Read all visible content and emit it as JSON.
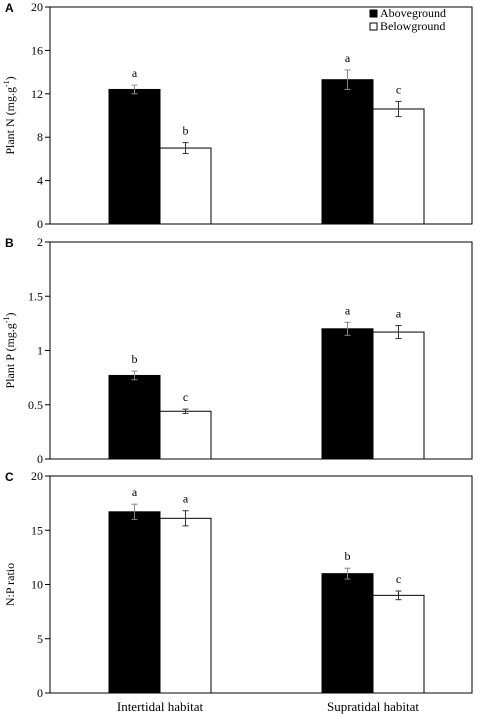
{
  "chart_data": [
    {
      "panel": "A",
      "type": "bar",
      "ylabel": "Plant N (mg.g",
      "ylabel_sup": "-1",
      "ylabel_end": ")",
      "ylim": [
        0,
        20
      ],
      "yticks": [
        0,
        4,
        8,
        12,
        16,
        20
      ],
      "ytick_labels": [
        "0",
        "4",
        "8",
        "12",
        "16",
        "20"
      ],
      "categories": [
        "Intertidal habitat",
        "Supratidal habitat"
      ],
      "legend": "top-right",
      "series": [
        {
          "name": "Aboveground",
          "fill": "#000000",
          "values": [
            12.4,
            13.3
          ],
          "errors": [
            0.4,
            0.9
          ],
          "letters": [
            "a",
            "a"
          ]
        },
        {
          "name": "Belowground",
          "fill": "#ffffff",
          "values": [
            7.0,
            10.6
          ],
          "errors": [
            0.5,
            0.7
          ],
          "letters": [
            "b",
            "c"
          ]
        }
      ]
    },
    {
      "panel": "B",
      "type": "bar",
      "ylabel": "Plant P (mg.g",
      "ylabel_sup": "-1",
      "ylabel_end": ")",
      "ylim": [
        0,
        2
      ],
      "yticks": [
        0,
        0.5,
        1,
        1.5,
        2
      ],
      "ytick_labels": [
        "0",
        "0.5",
        "1",
        "1.5",
        "2"
      ],
      "categories": [
        "Intertidal habitat",
        "Supratidal habitat"
      ],
      "series": [
        {
          "name": "Aboveground",
          "fill": "#000000",
          "values": [
            0.77,
            1.2
          ],
          "errors": [
            0.04,
            0.06
          ],
          "letters": [
            "b",
            "a"
          ]
        },
        {
          "name": "Belowground",
          "fill": "#ffffff",
          "values": [
            0.44,
            1.17
          ],
          "errors": [
            0.02,
            0.06
          ],
          "letters": [
            "c",
            "a"
          ]
        }
      ]
    },
    {
      "panel": "C",
      "type": "bar",
      "ylabel": "N:P ratio",
      "ylabel_sup": "",
      "ylabel_end": "",
      "ylim": [
        0,
        20
      ],
      "yticks": [
        0,
        5,
        10,
        15,
        20
      ],
      "ytick_labels": [
        "0",
        "5",
        "10",
        "15",
        "20"
      ],
      "categories": [
        "Intertidal habitat",
        "Supratidal habitat"
      ],
      "series": [
        {
          "name": "Aboveground",
          "fill": "#000000",
          "values": [
            16.7,
            11.0
          ],
          "errors": [
            0.7,
            0.5
          ],
          "letters": [
            "a",
            "b"
          ]
        },
        {
          "name": "Belowground",
          "fill": "#ffffff",
          "values": [
            16.1,
            9.0
          ],
          "errors": [
            0.7,
            0.4
          ],
          "letters": [
            "a",
            "c"
          ]
        }
      ]
    }
  ]
}
